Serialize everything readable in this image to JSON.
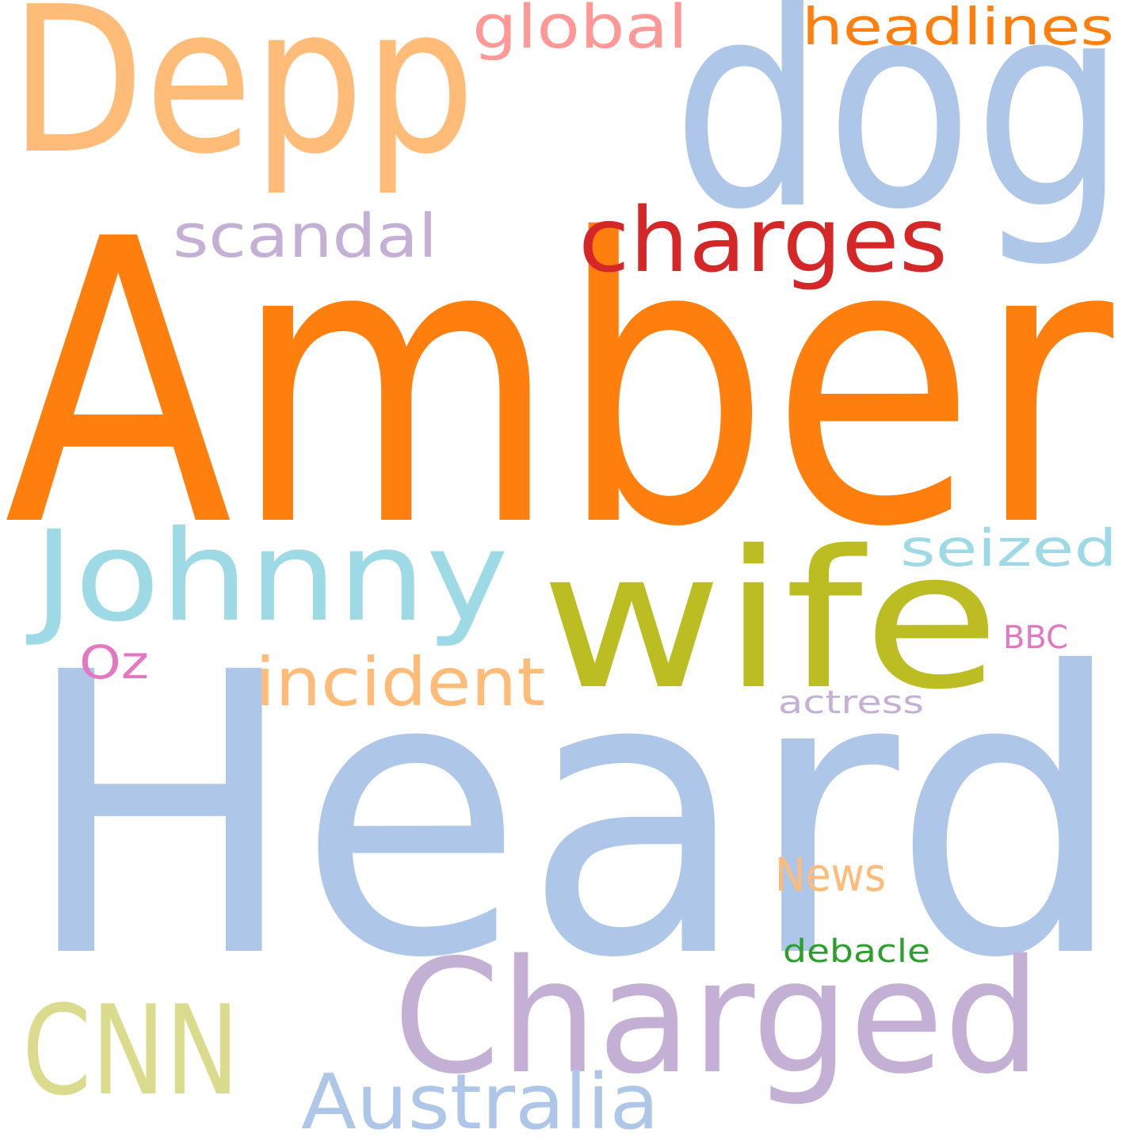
{
  "words": [
    {
      "id": "amber",
      "text": "Amber",
      "color": "#ff7f0e"
    },
    {
      "id": "heard",
      "text": "Heard",
      "color": "#aec7e8"
    },
    {
      "id": "dog",
      "text": "dog",
      "color": "#aec7e8"
    },
    {
      "id": "depp",
      "text": "Depp",
      "color": "#ffbb78"
    },
    {
      "id": "charged",
      "text": "Charged",
      "color": "#c5b0d5"
    },
    {
      "id": "wife",
      "text": "wife",
      "color": "#bcbd22"
    },
    {
      "id": "johnny",
      "text": "Johnny",
      "color": "#9edae5"
    },
    {
      "id": "charges",
      "text": "charges",
      "color": "#d62728"
    },
    {
      "id": "cnn",
      "text": "CNN",
      "color": "#dbdb8d"
    },
    {
      "id": "australia",
      "text": "Australia",
      "color": "#aec7e8"
    },
    {
      "id": "incident",
      "text": "incident",
      "color": "#ffbb78"
    },
    {
      "id": "scandal",
      "text": "scandal",
      "color": "#c5b0d5"
    },
    {
      "id": "global",
      "text": "global",
      "color": "#ff9896"
    },
    {
      "id": "headlines",
      "text": "headlines",
      "color": "#ff7f0e"
    },
    {
      "id": "seized",
      "text": "seized",
      "color": "#9edae5"
    },
    {
      "id": "news",
      "text": "News",
      "color": "#ffbb78"
    },
    {
      "id": "oz",
      "text": "Oz",
      "color": "#e377c2"
    },
    {
      "id": "bbc",
      "text": "BBC",
      "color": "#e377c2"
    },
    {
      "id": "actress",
      "text": "actress",
      "color": "#c5b0d5"
    },
    {
      "id": "debacle",
      "text": "debacle",
      "color": "#2ca02c"
    }
  ]
}
